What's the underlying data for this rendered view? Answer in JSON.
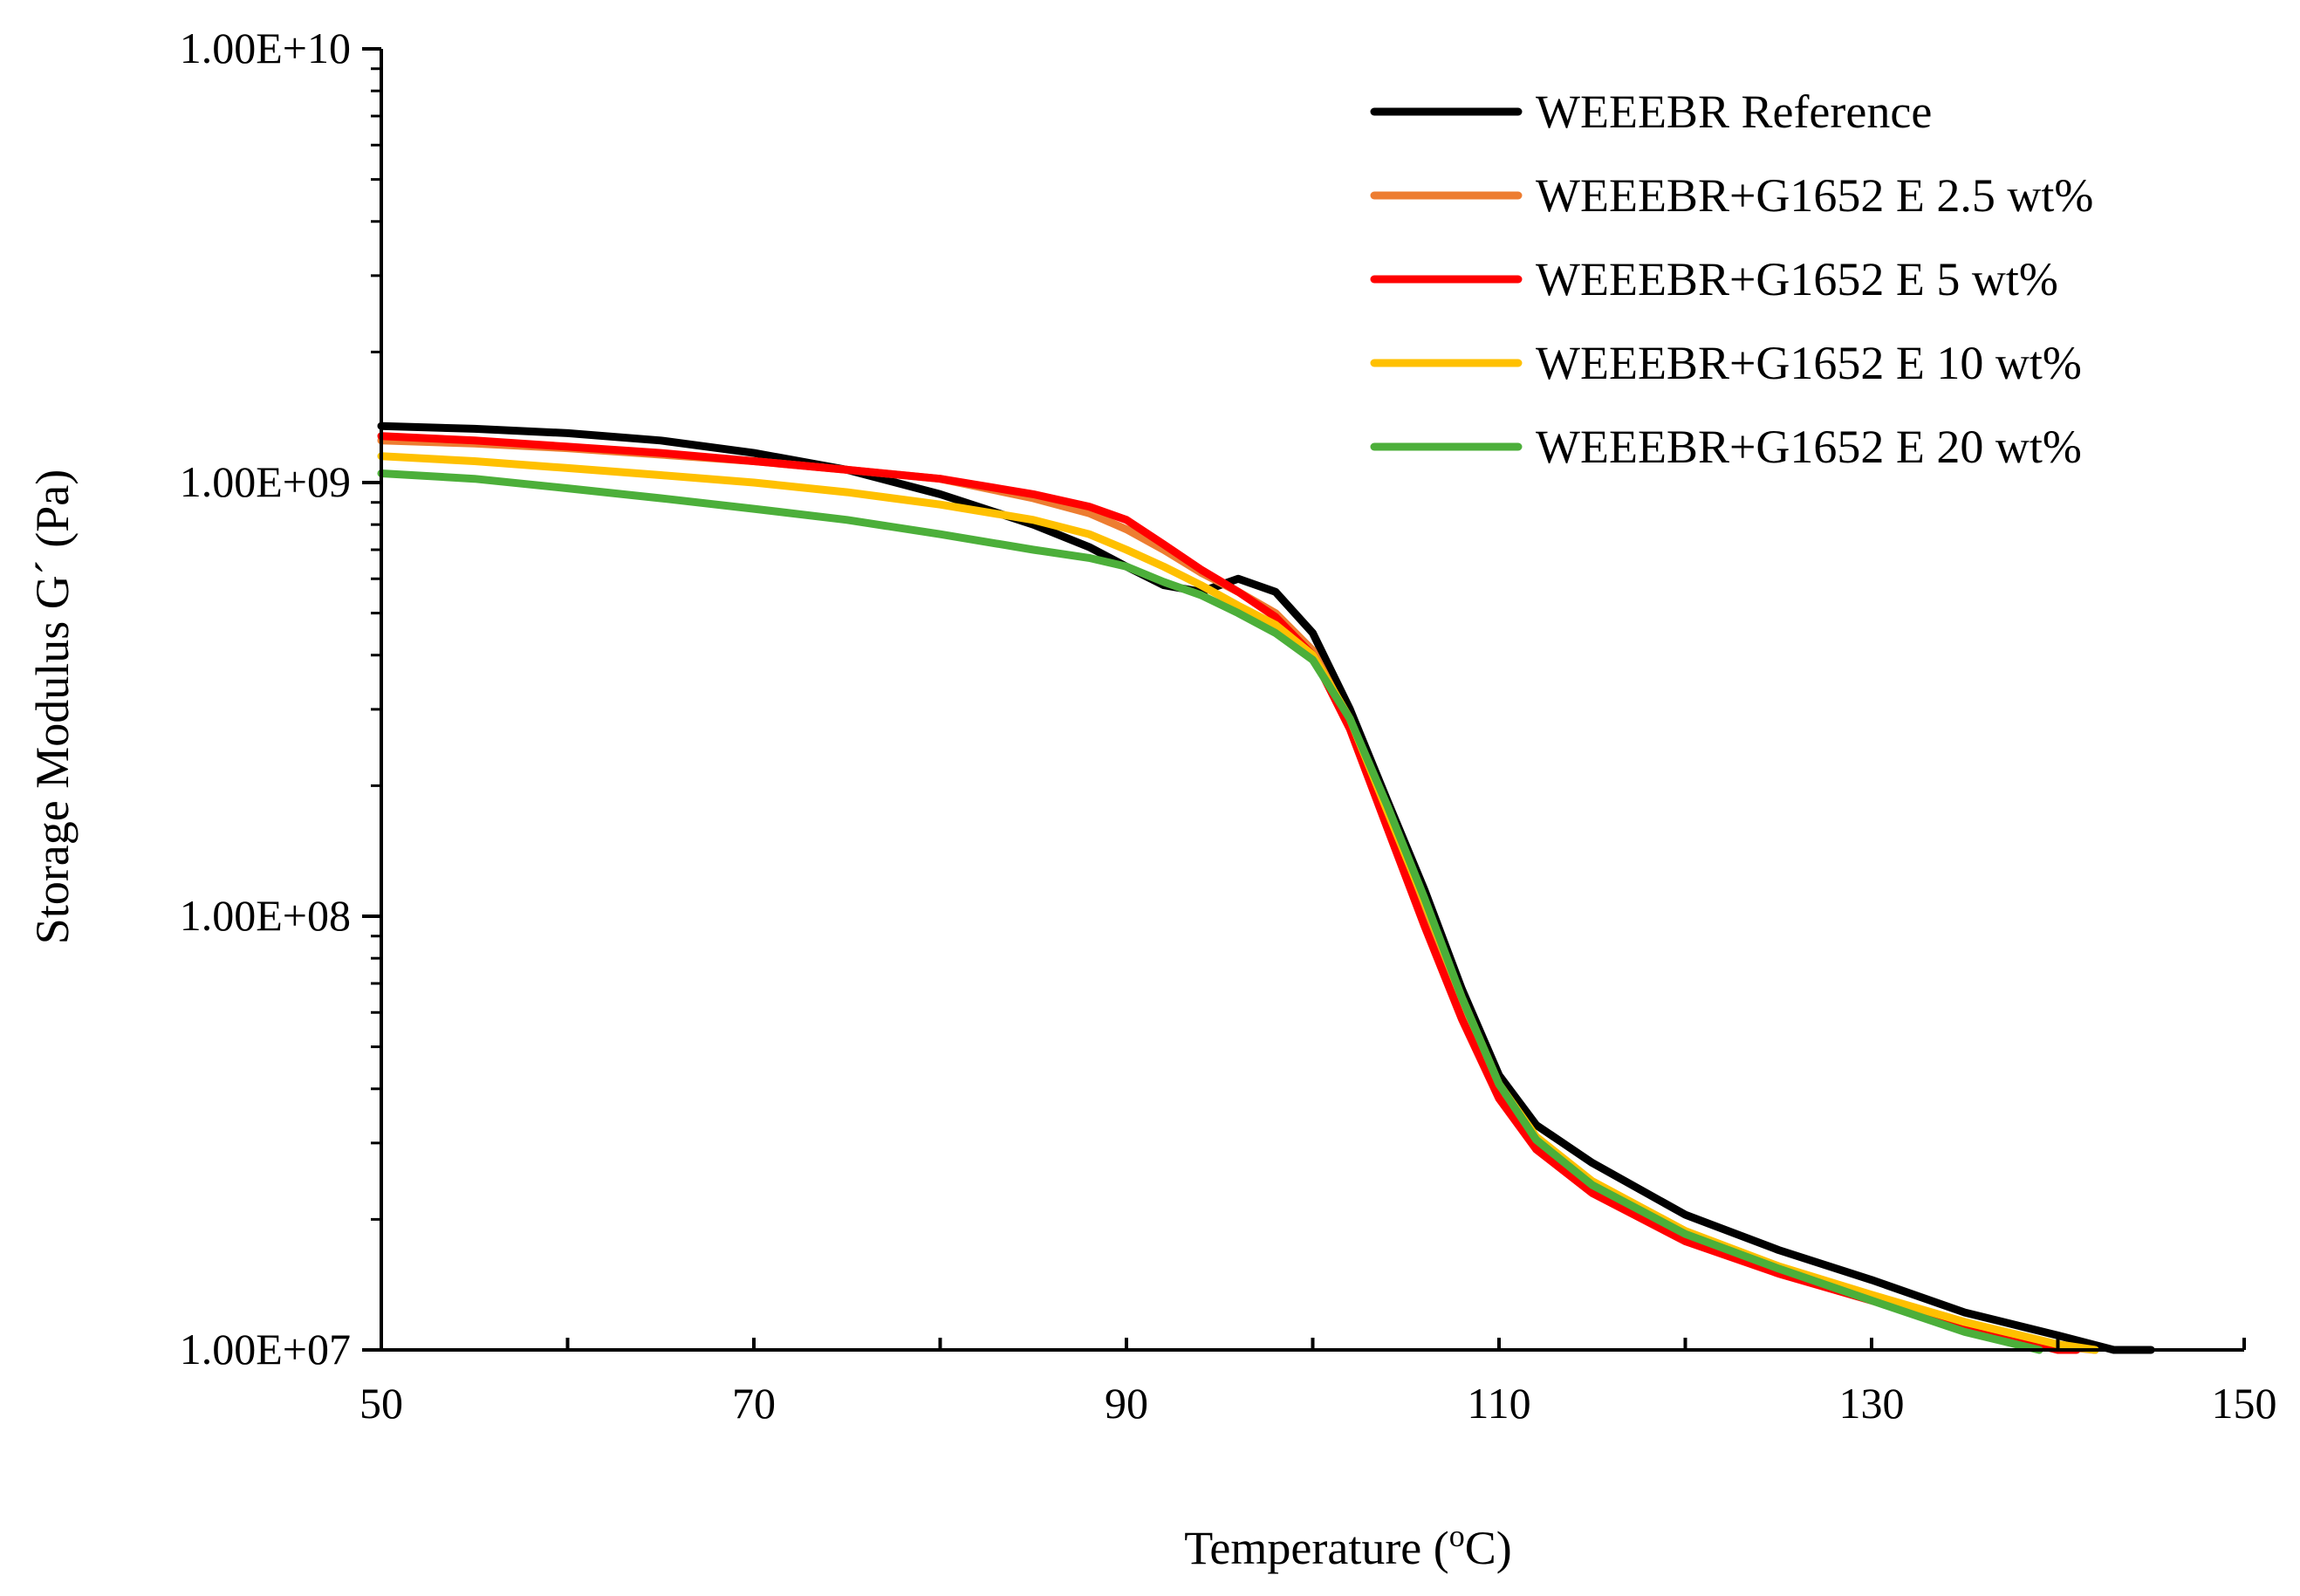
{
  "chart_data": {
    "type": "line",
    "title": "",
    "xlabel": "Temperature (",
    "xlabel_sup": "o",
    "xlabel_tail": "C)",
    "ylabel": "Storage Modulus G´ (Pa)",
    "xlim": [
      50,
      150
    ],
    "ylim": [
      10000000,
      10000000000
    ],
    "yscale": "log",
    "x_ticks": [
      "50",
      "70",
      "90",
      "110",
      "130",
      "150"
    ],
    "y_ticks": [
      "1.00E+07",
      "1.00E+08",
      "1.00E+09",
      "1.00E+10"
    ],
    "legend_position": "top-right",
    "series": [
      {
        "name": "WEEEBR Reference",
        "color": "#000000",
        "x": [
          50,
          55,
          60,
          65,
          70,
          75,
          80,
          85,
          88,
          90,
          92,
          94,
          96,
          98,
          100,
          102,
          104,
          106,
          108,
          110,
          112,
          115,
          120,
          125,
          130,
          135,
          140,
          143,
          145
        ],
        "y": [
          1350000000.0,
          1330000000.0,
          1300000000.0,
          1250000000.0,
          1170000000.0,
          1070000000.0,
          940000000.0,
          800000000.0,
          710000000.0,
          640000000.0,
          580000000.0,
          560000000.0,
          600000000.0,
          560000000.0,
          450000000.0,
          300000000.0,
          185000000.0,
          115000000.0,
          68000000.0,
          43000000.0,
          33000000.0,
          27000000.0,
          20500000.0,
          17000000.0,
          14500000.0,
          12200000.0,
          10800000.0,
          10000000.0,
          9800000.0
        ]
      },
      {
        "name": "WEEEBR+G1652 E 2.5 wt%",
        "color": "#ED7D31",
        "x": [
          50,
          55,
          60,
          65,
          70,
          75,
          80,
          85,
          88,
          90,
          92,
          94,
          96,
          98,
          100,
          102,
          104,
          106,
          108,
          110,
          112,
          115,
          120,
          125,
          130,
          135,
          140,
          142
        ],
        "y": [
          1250000000.0,
          1230000000.0,
          1200000000.0,
          1160000000.0,
          1120000000.0,
          1070000000.0,
          1020000000.0,
          920000000.0,
          850000000.0,
          780000000.0,
          700000000.0,
          620000000.0,
          560000000.0,
          500000000.0,
          410000000.0,
          280000000.0,
          170000000.0,
          105000000.0,
          63000000.0,
          40000000.0,
          30000000.0,
          24000000.0,
          18500000.0,
          15500000.0,
          13300000.0,
          11500000.0,
          10200000.0,
          9800000.0
        ]
      },
      {
        "name": "WEEEBR+G1652 E 5 wt%",
        "color": "#FF0000",
        "x": [
          50,
          55,
          60,
          65,
          70,
          75,
          80,
          85,
          88,
          90,
          92,
          94,
          96,
          98,
          100,
          102,
          104,
          106,
          108,
          110,
          112,
          115,
          120,
          125,
          130,
          135,
          140,
          141
        ],
        "y": [
          1280000000.0,
          1250000000.0,
          1210000000.0,
          1170000000.0,
          1120000000.0,
          1070000000.0,
          1020000000.0,
          940000000.0,
          880000000.0,
          820000000.0,
          720000000.0,
          630000000.0,
          560000000.0,
          490000000.0,
          400000000.0,
          270000000.0,
          160000000.0,
          95000000.0,
          58000000.0,
          38000000.0,
          29000000.0,
          23000000.0,
          17800000.0,
          15000000.0,
          13000000.0,
          11300000.0,
          10000000.0,
          9800000.0
        ]
      },
      {
        "name": "WEEEBR+G1652 E 10 wt%",
        "color": "#FFC000",
        "x": [
          50,
          55,
          60,
          65,
          70,
          75,
          80,
          85,
          88,
          90,
          92,
          94,
          96,
          98,
          100,
          102,
          104,
          106,
          108,
          110,
          112,
          115,
          120,
          125,
          130,
          135,
          140,
          142
        ],
        "y": [
          1150000000.0,
          1120000000.0,
          1080000000.0,
          1040000000.0,
          1000000000.0,
          950000000.0,
          890000000.0,
          820000000.0,
          760000000.0,
          700000000.0,
          640000000.0,
          580000000.0,
          520000000.0,
          470000000.0,
          400000000.0,
          285000000.0,
          175000000.0,
          108000000.0,
          65000000.0,
          41000000.0,
          31000000.0,
          24500000.0,
          18800000.0,
          15600000.0,
          13400000.0,
          11600000.0,
          10300000.0,
          9800000.0
        ]
      },
      {
        "name": "WEEEBR+G1652 E 20 wt%",
        "color": "#4CAF3A",
        "x": [
          50,
          55,
          60,
          65,
          70,
          75,
          80,
          85,
          88,
          90,
          92,
          94,
          96,
          98,
          100,
          102,
          104,
          106,
          108,
          110,
          112,
          115,
          120,
          125,
          130,
          135,
          139
        ],
        "y": [
          1050000000.0,
          1020000000.0,
          970000000.0,
          920000000.0,
          870000000.0,
          820000000.0,
          760000000.0,
          700000000.0,
          670000000.0,
          640000000.0,
          590000000.0,
          550000000.0,
          500000000.0,
          450000000.0,
          390000000.0,
          285000000.0,
          180000000.0,
          110000000.0,
          65000000.0,
          41000000.0,
          30500000.0,
          24000000.0,
          18500000.0,
          15400000.0,
          13000000.0,
          11000000.0,
          9800000.0
        ]
      }
    ]
  }
}
